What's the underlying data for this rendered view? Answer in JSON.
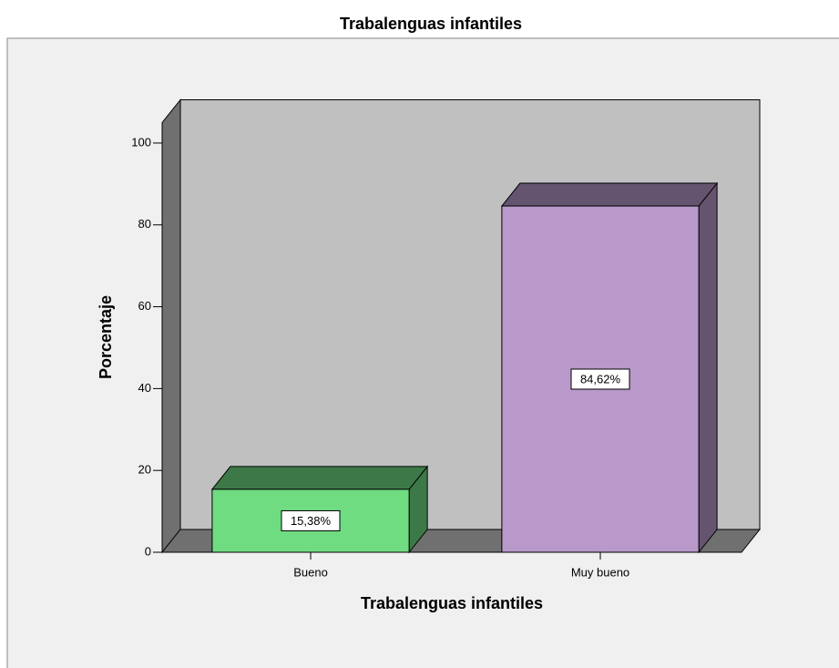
{
  "chart_data": {
    "type": "bar",
    "title": "Trabalenguas infantiles",
    "x_label": "Trabalenguas infantiles",
    "y_label": "Porcentaje",
    "categories": [
      "Bueno",
      "Muy bueno"
    ],
    "values": [
      15.38,
      84.62
    ],
    "value_labels": [
      "15,38%",
      "84,62%"
    ],
    "colors": [
      "#6fdc82",
      "#b899c9"
    ],
    "ylim": [
      0,
      105
    ],
    "yticks": [
      0,
      20,
      40,
      60,
      80,
      100
    ]
  }
}
